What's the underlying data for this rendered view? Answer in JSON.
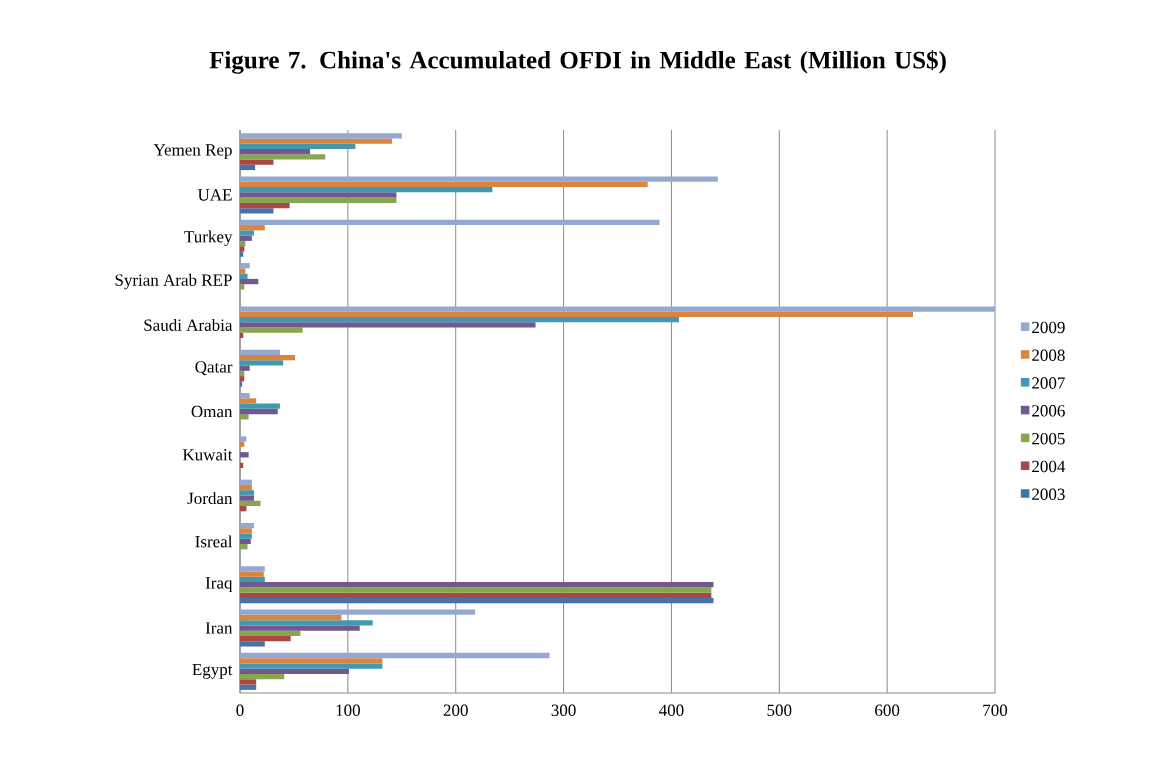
{
  "chart_data": {
    "type": "bar",
    "orientation": "horizontal",
    "title": "Figure 7. China's Accumulated OFDI in Middle East (Million US$)",
    "categories": [
      "Yemen Rep",
      "UAE",
      "Turkey",
      "Syrian Arab REP",
      "Saudi Arabia",
      "Qatar",
      "Oman",
      "Kuwait",
      "Jordan",
      "Isreal",
      "Iraq",
      "Iran",
      "Egypt"
    ],
    "series": [
      {
        "name": "2009",
        "color": "#93a9cf",
        "values": [
          150,
          443,
          389,
          9,
          700,
          37,
          9,
          6,
          11,
          13,
          23,
          218,
          287
        ]
      },
      {
        "name": "2008",
        "color": "#db843d",
        "values": [
          141,
          378,
          23,
          5,
          624,
          51,
          15,
          4,
          11,
          11,
          22,
          94,
          132
        ]
      },
      {
        "name": "2007",
        "color": "#4198af",
        "values": [
          107,
          234,
          13,
          7,
          407,
          40,
          37,
          0,
          13,
          11,
          23,
          123,
          132
        ]
      },
      {
        "name": "2006",
        "color": "#71588f",
        "values": [
          65,
          145,
          11,
          17,
          274,
          9,
          35,
          8,
          13,
          10,
          439,
          111,
          101
        ]
      },
      {
        "name": "2005",
        "color": "#89a54e",
        "values": [
          79,
          145,
          5,
          4,
          58,
          4,
          8,
          0,
          19,
          7,
          437,
          56,
          41
        ]
      },
      {
        "name": "2004",
        "color": "#aa4643",
        "values": [
          31,
          46,
          4,
          0,
          3,
          4,
          0,
          3,
          6,
          0,
          437,
          47,
          15
        ]
      },
      {
        "name": "2003",
        "color": "#4572a7",
        "values": [
          14,
          31,
          3,
          0,
          0,
          2,
          0,
          0,
          0,
          0,
          439,
          23,
          15
        ]
      }
    ],
    "xlim": [
      0,
      700
    ],
    "xticks": [
      0,
      100,
      200,
      300,
      400,
      500,
      600,
      700
    ],
    "grid": "x",
    "legend": "right"
  }
}
